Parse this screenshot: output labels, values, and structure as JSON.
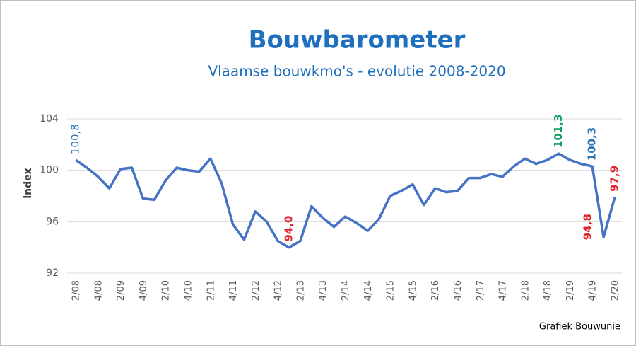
{
  "chart_data": {
    "type": "line",
    "title": "Bouwbarometer",
    "subtitle": "Vlaamse bouwkmo's - evolutie 2008-2020",
    "y_label": "index",
    "source": "Grafiek Bouwunie",
    "categories": [
      "2/08",
      null,
      "4/08",
      null,
      "2/09",
      null,
      "4/09",
      null,
      "2/10",
      null,
      "4/10",
      null,
      "2/11",
      null,
      "4/11",
      null,
      "2/12",
      null,
      "4/12",
      null,
      "2/13",
      null,
      "4/13",
      null,
      "2/14",
      null,
      "4/14",
      null,
      "2/15",
      null,
      "4/15",
      null,
      "2/16",
      null,
      "4/16",
      null,
      "2/17",
      null,
      "4/17",
      null,
      "2/18",
      null,
      "4/18",
      null,
      "2/19",
      null,
      "4/19",
      null,
      "2/20"
    ],
    "values": [
      100.8,
      100.2,
      99.5,
      98.6,
      100.1,
      100.2,
      97.8,
      97.7,
      99.2,
      100.2,
      100.0,
      99.9,
      100.9,
      99.0,
      95.8,
      94.6,
      96.8,
      96.0,
      94.5,
      94.0,
      94.5,
      97.2,
      96.3,
      95.6,
      96.4,
      95.9,
      95.3,
      96.2,
      98.0,
      98.4,
      98.9,
      97.3,
      98.6,
      98.3,
      98.4,
      99.4,
      99.4,
      99.7,
      99.5,
      100.3,
      100.9,
      100.5,
      100.8,
      101.3,
      100.8,
      100.5,
      100.3,
      94.8,
      97.9
    ],
    "value_labels": [
      "100,8",
      null,
      null,
      null,
      null,
      null,
      null,
      null,
      null,
      null,
      null,
      null,
      null,
      null,
      null,
      null,
      null,
      null,
      null,
      "94,0",
      null,
      null,
      null,
      null,
      null,
      null,
      null,
      null,
      null,
      null,
      null,
      null,
      null,
      null,
      null,
      null,
      null,
      null,
      null,
      null,
      null,
      null,
      null,
      "101,3",
      null,
      null,
      "100,3",
      "94,8",
      "97,9"
    ],
    "label_colors": [
      "#2e75b6",
      null,
      null,
      null,
      null,
      null,
      null,
      null,
      null,
      null,
      null,
      null,
      null,
      null,
      null,
      null,
      null,
      null,
      null,
      "#e0242c",
      null,
      null,
      null,
      null,
      null,
      null,
      null,
      null,
      null,
      null,
      null,
      null,
      null,
      null,
      null,
      null,
      null,
      null,
      null,
      null,
      null,
      null,
      null,
      "#10a060",
      null,
      null,
      "#2e75b6",
      "#e0242c",
      "#e0242c"
    ],
    "color": "#4472c4",
    "ylim": [
      92,
      104
    ],
    "yticks": [
      92,
      96,
      100,
      104
    ],
    "grid": true
  }
}
